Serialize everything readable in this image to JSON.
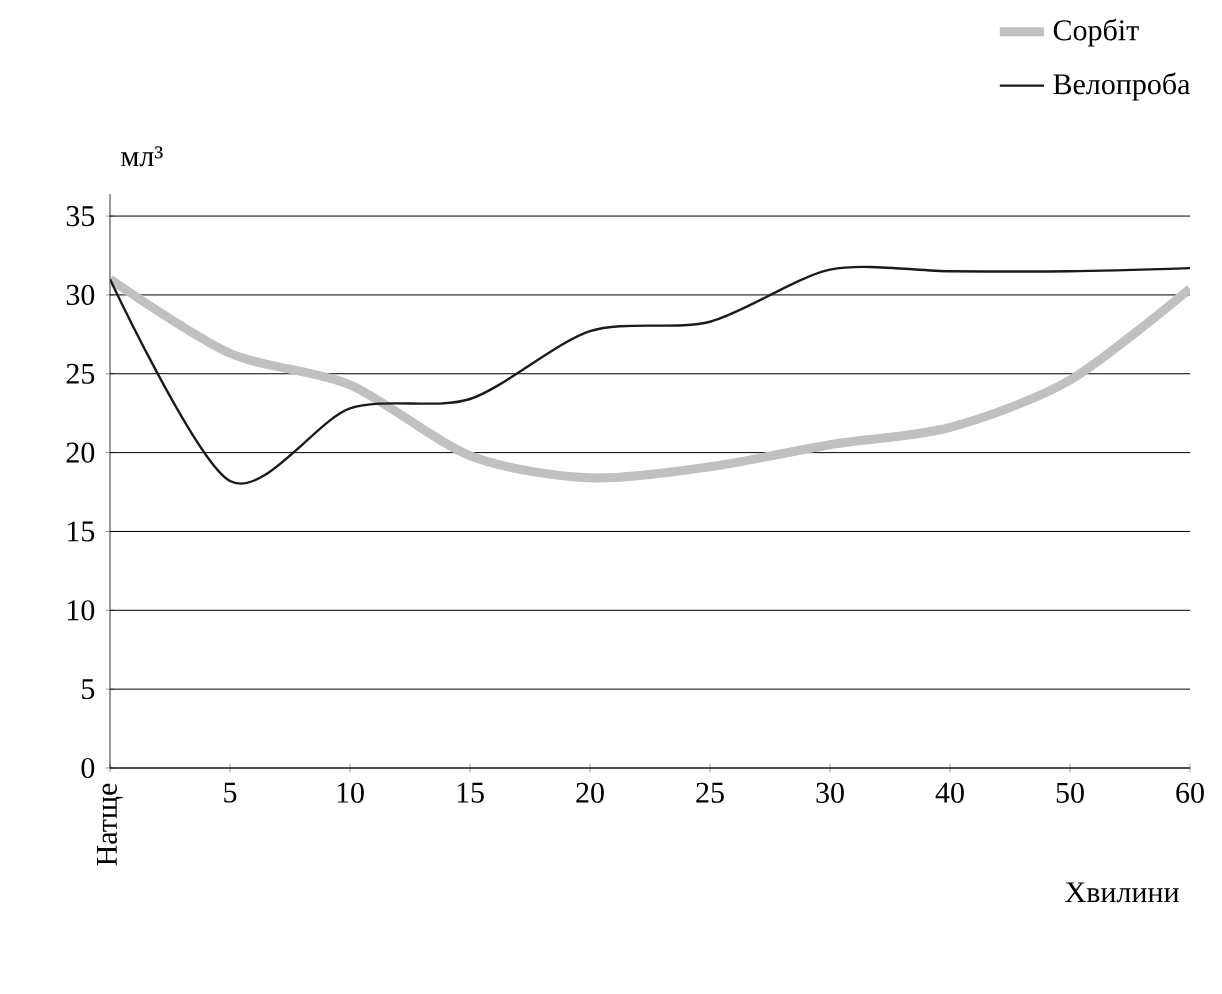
{
  "chart_data": {
    "type": "line",
    "ylabel": "мл³",
    "xlabel": "Хвилини",
    "categories": [
      "Натще",
      "5",
      "10",
      "15",
      "20",
      "25",
      "30",
      "40",
      "50",
      "60"
    ],
    "series": [
      {
        "name": "Сорбіт",
        "color": "#c0c0c0",
        "values": [
          31,
          26.3,
          24.3,
          19.8,
          18.4,
          19.1,
          20.5,
          21.6,
          24.6,
          30.4
        ]
      },
      {
        "name": "Велопроба",
        "color": "#1a1a1a",
        "values": [
          31,
          18.2,
          22.8,
          23.4,
          27.7,
          28.3,
          31.6,
          31.5,
          31.5,
          31.7
        ]
      }
    ],
    "ylim": [
      0,
      35
    ],
    "yticks": [
      0,
      5,
      10,
      15,
      20,
      25,
      30,
      35
    ],
    "grid": "y",
    "legend": "top right",
    "marker": "none",
    "line_style": "solid"
  }
}
